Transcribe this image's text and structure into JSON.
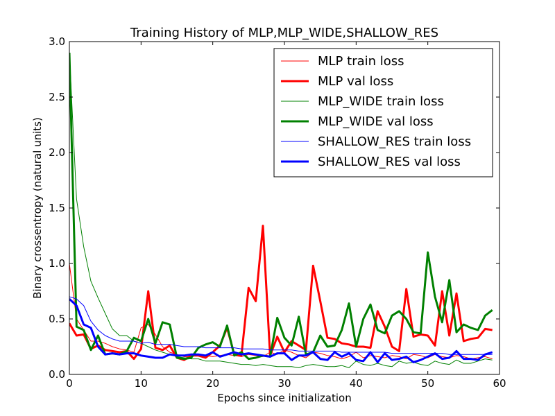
{
  "chart_data": {
    "type": "line",
    "title": "Training History of MLP,MLP_WIDE,SHALLOW_RES",
    "xlabel": "Epochs since initialization",
    "ylabel": "Binary crossentropy (natural units)",
    "xlim": [
      0,
      60
    ],
    "ylim": [
      0,
      3.0
    ],
    "xticks": [
      0,
      10,
      20,
      30,
      40,
      50,
      60
    ],
    "yticks": [
      0.0,
      0.5,
      1.0,
      1.5,
      2.0,
      2.5,
      3.0
    ],
    "xtick_labels": [
      "0",
      "10",
      "20",
      "30",
      "40",
      "50",
      "60"
    ],
    "ytick_labels": [
      "0.0",
      "0.5",
      "1.0",
      "1.5",
      "2.0",
      "2.5",
      "3.0"
    ],
    "grid": false,
    "legend_position": "top-right",
    "x": [
      0,
      1,
      2,
      3,
      4,
      5,
      6,
      7,
      8,
      9,
      10,
      11,
      12,
      13,
      14,
      15,
      16,
      17,
      18,
      19,
      20,
      21,
      22,
      23,
      24,
      25,
      26,
      27,
      28,
      29,
      30,
      31,
      32,
      33,
      34,
      35,
      36,
      37,
      38,
      39,
      40,
      41,
      42,
      43,
      44,
      45,
      46,
      47,
      48,
      49,
      50,
      51,
      52,
      53,
      54,
      55,
      56,
      57,
      58,
      59
    ],
    "series": [
      {
        "name": "MLP train loss",
        "color": "#ff0000",
        "width": 1,
        "values": [
          1.0,
          0.5,
          0.4,
          0.3,
          0.3,
          0.28,
          0.25,
          0.23,
          0.22,
          0.2,
          0.42,
          0.45,
          0.36,
          0.25,
          0.2,
          0.18,
          0.16,
          0.16,
          0.18,
          0.17,
          0.16,
          0.17,
          0.18,
          0.17,
          0.16,
          0.18,
          0.17,
          0.16,
          0.2,
          0.18,
          0.22,
          0.2,
          0.17,
          0.15,
          0.2,
          0.19,
          0.17,
          0.16,
          0.14,
          0.16,
          0.2,
          0.15,
          0.17,
          0.16,
          0.15,
          0.17,
          0.16,
          0.14,
          0.18,
          0.17,
          0.15,
          0.18,
          0.16,
          0.15,
          0.17,
          0.16,
          0.14,
          0.15,
          0.16,
          0.14
        ]
      },
      {
        "name": "MLP val loss",
        "color": "#ff0000",
        "width": 3,
        "values": [
          0.46,
          0.35,
          0.36,
          0.23,
          0.26,
          0.22,
          0.21,
          0.2,
          0.21,
          0.14,
          0.23,
          0.75,
          0.24,
          0.22,
          0.26,
          0.15,
          0.13,
          0.17,
          0.17,
          0.15,
          0.2,
          0.26,
          0.42,
          0.18,
          0.17,
          0.78,
          0.66,
          1.34,
          0.17,
          0.34,
          0.2,
          0.3,
          0.26,
          0.22,
          0.98,
          0.66,
          0.33,
          0.32,
          0.28,
          0.27,
          0.25,
          0.25,
          0.24,
          0.57,
          0.43,
          0.25,
          0.21,
          0.77,
          0.34,
          0.36,
          0.35,
          0.26,
          0.75,
          0.35,
          0.73,
          0.3,
          0.32,
          0.33,
          0.41,
          0.4
        ]
      },
      {
        "name": "MLP_WIDE train loss",
        "color": "#008000",
        "width": 1,
        "values": [
          2.9,
          1.58,
          1.15,
          0.84,
          0.69,
          0.55,
          0.41,
          0.35,
          0.35,
          0.3,
          0.28,
          0.25,
          0.22,
          0.2,
          0.18,
          0.16,
          0.15,
          0.14,
          0.14,
          0.12,
          0.12,
          0.12,
          0.11,
          0.1,
          0.09,
          0.09,
          0.08,
          0.09,
          0.08,
          0.07,
          0.07,
          0.07,
          0.06,
          0.08,
          0.09,
          0.08,
          0.07,
          0.07,
          0.08,
          0.06,
          0.12,
          0.09,
          0.08,
          0.1,
          0.08,
          0.07,
          0.12,
          0.1,
          0.11,
          0.09,
          0.08,
          0.12,
          0.1,
          0.09,
          0.13,
          0.1,
          0.1,
          0.12,
          0.14,
          0.13
        ]
      },
      {
        "name": "MLP_WIDE val loss",
        "color": "#008000",
        "width": 3,
        "values": [
          2.9,
          0.43,
          0.4,
          0.22,
          0.35,
          0.18,
          0.19,
          0.18,
          0.21,
          0.33,
          0.3,
          0.5,
          0.28,
          0.47,
          0.45,
          0.15,
          0.14,
          0.15,
          0.24,
          0.27,
          0.29,
          0.25,
          0.44,
          0.17,
          0.2,
          0.14,
          0.15,
          0.17,
          0.16,
          0.51,
          0.33,
          0.26,
          0.52,
          0.18,
          0.2,
          0.35,
          0.25,
          0.26,
          0.4,
          0.64,
          0.25,
          0.5,
          0.63,
          0.4,
          0.37,
          0.53,
          0.57,
          0.5,
          0.38,
          0.37,
          1.1,
          0.7,
          0.47,
          0.85,
          0.38,
          0.45,
          0.42,
          0.4,
          0.53,
          0.58
        ]
      },
      {
        "name": "SHALLOW_RES train loss",
        "color": "#0000ff",
        "width": 1,
        "values": [
          0.7,
          0.68,
          0.62,
          0.48,
          0.4,
          0.35,
          0.32,
          0.3,
          0.3,
          0.3,
          0.28,
          0.29,
          0.27,
          0.27,
          0.27,
          0.26,
          0.25,
          0.25,
          0.25,
          0.24,
          0.24,
          0.24,
          0.24,
          0.24,
          0.23,
          0.23,
          0.23,
          0.23,
          0.22,
          0.22,
          0.22,
          0.22,
          0.21,
          0.21,
          0.21,
          0.21,
          0.21,
          0.21,
          0.2,
          0.2,
          0.2,
          0.2,
          0.2,
          0.2,
          0.2,
          0.19,
          0.19,
          0.19,
          0.19,
          0.19,
          0.19,
          0.19,
          0.19,
          0.18,
          0.18,
          0.18,
          0.18,
          0.18,
          0.18,
          0.18
        ]
      },
      {
        "name": "SHALLOW_RES val loss",
        "color": "#0000ff",
        "width": 3,
        "values": [
          0.68,
          0.62,
          0.45,
          0.42,
          0.25,
          0.18,
          0.19,
          0.18,
          0.19,
          0.19,
          0.17,
          0.16,
          0.15,
          0.15,
          0.18,
          0.17,
          0.17,
          0.18,
          0.18,
          0.17,
          0.2,
          0.16,
          0.18,
          0.2,
          0.18,
          0.19,
          0.18,
          0.17,
          0.16,
          0.19,
          0.19,
          0.13,
          0.17,
          0.17,
          0.2,
          0.14,
          0.13,
          0.2,
          0.16,
          0.19,
          0.13,
          0.12,
          0.2,
          0.11,
          0.19,
          0.13,
          0.14,
          0.16,
          0.11,
          0.13,
          0.16,
          0.19,
          0.14,
          0.15,
          0.21,
          0.14,
          0.14,
          0.13,
          0.18,
          0.2
        ]
      }
    ]
  }
}
